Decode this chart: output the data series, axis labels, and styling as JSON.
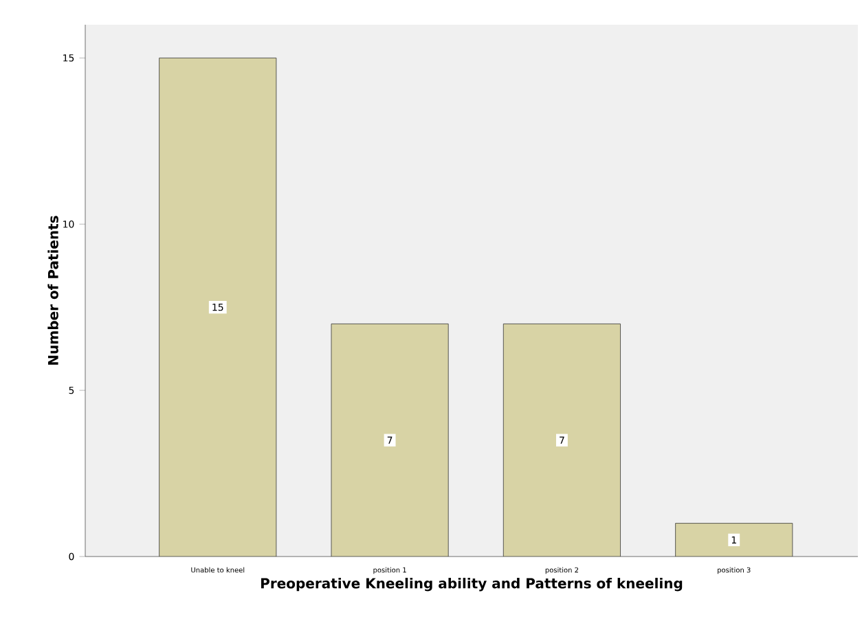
{
  "chart_data": {
    "type": "bar",
    "xlabel": "Preoperative Kneeling ability and Patterns of kneeling",
    "ylabel": "Number of Patients",
    "categories": [
      "Unable to kneel",
      "position 1",
      "position 2",
      "position 3"
    ],
    "values": [
      15,
      7,
      7,
      1
    ],
    "color": "#d8d3a5",
    "ylim": [
      0,
      16
    ],
    "yticks": [
      0,
      5,
      10,
      15
    ],
    "data_labels": true
  }
}
